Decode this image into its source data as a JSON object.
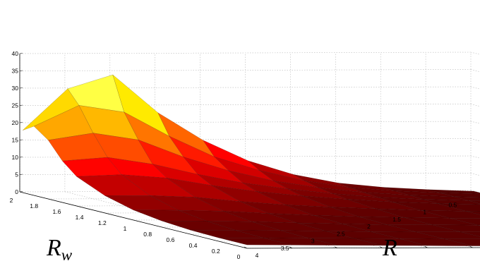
{
  "chart_data": {
    "type": "surface3d",
    "title": "",
    "xlabel": "R",
    "ylabel": "R",
    "ylabel_subscript": "w",
    "zlabel": "",
    "colormap": "hot",
    "grid": true,
    "xlim": [
      0,
      4
    ],
    "ylim": [
      0,
      2
    ],
    "zlim": [
      0,
      40
    ],
    "x_ticks": [
      "0.5",
      "1",
      "1.5",
      "2",
      "2.5",
      "3",
      "3.5",
      "4"
    ],
    "y_ticks": [
      "0",
      "0.2",
      "0.4",
      "0.6",
      "0.8",
      "1",
      "1.2",
      "1.4",
      "1.6",
      "1.8",
      "2"
    ],
    "z_ticks": [
      "0",
      "5",
      "10",
      "15",
      "20",
      "25",
      "30",
      "35",
      "40"
    ],
    "surface": {
      "x": [
        0.05,
        0.25,
        0.5,
        0.75,
        1.0,
        1.5,
        2.0,
        2.5,
        3.0,
        3.5,
        4.0
      ],
      "y": [
        0.0,
        0.2,
        0.4,
        0.6,
        0.8,
        1.0,
        1.2,
        1.4,
        1.6,
        1.8,
        2.0
      ],
      "z": [
        [
          0,
          0,
          0,
          0,
          0,
          0,
          0,
          0,
          0,
          0,
          0
        ],
        [
          0.5,
          0.4,
          0.3,
          0.2,
          0.1,
          0.1,
          0.1,
          0.1,
          0.1,
          0.1,
          0.1
        ],
        [
          1.2,
          1.0,
          0.8,
          0.6,
          0.4,
          0.2,
          0.2,
          0.2,
          0.2,
          0.2,
          0.2
        ],
        [
          2.5,
          2.0,
          1.6,
          1.2,
          0.9,
          0.5,
          0.3,
          0.3,
          0.3,
          0.3,
          0.3
        ],
        [
          5,
          4,
          3,
          2.3,
          1.7,
          1.0,
          0.5,
          0.4,
          0.4,
          0.4,
          0.4
        ],
        [
          9,
          7,
          5,
          3.7,
          2.7,
          1.5,
          0.8,
          0.5,
          0.5,
          0.5,
          0.5
        ],
        [
          15,
          11,
          8,
          5.5,
          4,
          2.2,
          1.2,
          0.8,
          0.6,
          0.6,
          0.6
        ],
        [
          23,
          17,
          12,
          8,
          5.8,
          3.2,
          1.8,
          1.1,
          0.8,
          0.7,
          0.7
        ],
        [
          34,
          24,
          17,
          11,
          8,
          4.5,
          2.5,
          1.5,
          1.0,
          0.8,
          0.8
        ],
        [
          30,
          26,
          19,
          13,
          9,
          5,
          2.8,
          1.7,
          1.1,
          0.9,
          0.9
        ],
        [
          18,
          20,
          17,
          12,
          8.5,
          5,
          2.9,
          1.8,
          1.2,
          1.0,
          1.0
        ]
      ]
    }
  }
}
